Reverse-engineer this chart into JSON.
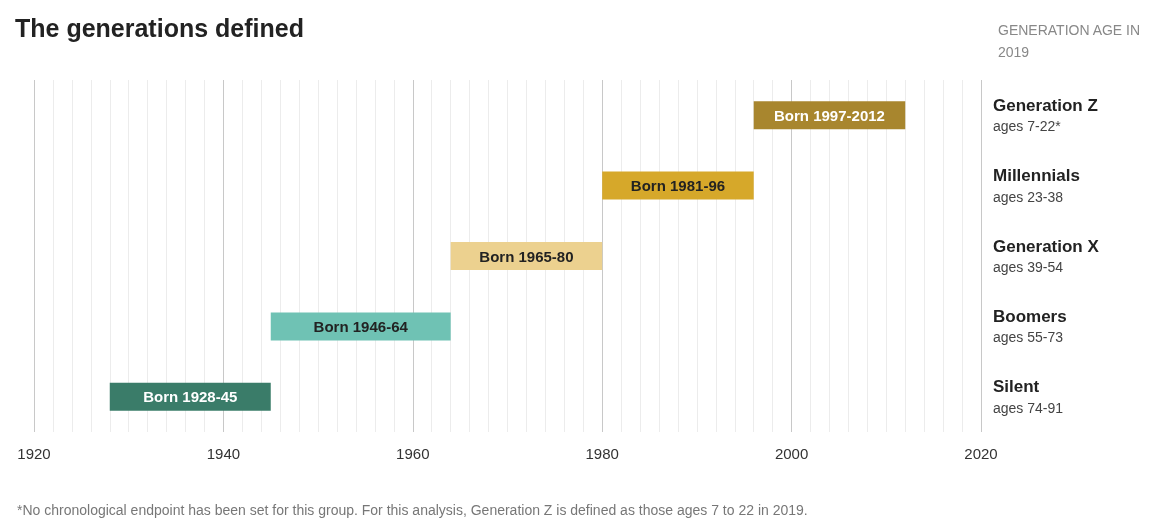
{
  "chart_data": {
    "type": "bar",
    "orientation": "horizontal",
    "title": "The generations defined",
    "ylabel": "GENERATION AGE IN 2019",
    "categories": [
      "Generation Z\nages 7-22*",
      "Millennials\nages 23-38",
      "Generation X\nages 39-54",
      "Boomers\nages 55-73",
      "Silent\nages 74-91"
    ],
    "base": [
      1996,
      1980,
      1964,
      1945,
      1928
    ],
    "values": [
      16,
      16,
      16,
      19,
      17
    ],
    "value_labels": [
      "Born 1997-2012",
      "Born 1981-96",
      "Born 1965-80",
      "Born 1946-64",
      "Born 1928-45"
    ],
    "colors": [
      "#a8862e",
      "#d6a82a",
      "#ecd18f",
      "#6fc2b4",
      "#3a7c69"
    ],
    "xlim": [
      1920,
      2020
    ],
    "xticks": [
      1920,
      1940,
      1960,
      1980,
      2000,
      2020
    ],
    "grid": "x",
    "annotations": [
      "*No chronological endpoint has been set for this group. For this analysis, Generation Z is defined as those ages 7 to 22 in 2019."
    ]
  }
}
